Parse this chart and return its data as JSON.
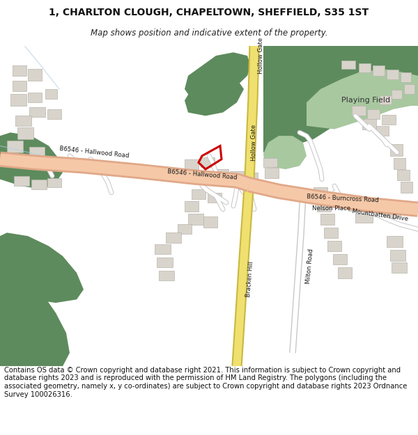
{
  "title": "1, CHARLTON CLOUGH, CHAPELTOWN, SHEFFIELD, S35 1ST",
  "subtitle": "Map shows position and indicative extent of the property.",
  "footer": "Contains OS data © Crown copyright and database right 2021. This information is subject to Crown copyright and database rights 2023 and is reproduced with the permission of HM Land Registry. The polygons (including the associated geometry, namely x, y co-ordinates) are subject to Crown copyright and database rights 2023 Ordnance Survey 100026316.",
  "bg_color": "#ffffff",
  "map_bg": "#f7f5f2",
  "green_dark": "#5d8b5d",
  "green_mid": "#7aaa7a",
  "green_light": "#a8c8a0",
  "road_major_fill": "#f5c8a8",
  "road_major_edge": "#e0a888",
  "road_yellow_fill": "#f0e070",
  "road_yellow_edge": "#c8b840",
  "road_minor_fill": "#ffffff",
  "road_minor_edge": "#c8c8c8",
  "building_fill": "#d8d4cc",
  "building_edge": "#b8b4ac",
  "red_poly": "#cc0000",
  "title_fs": 10,
  "subtitle_fs": 8.5,
  "footer_fs": 7.2
}
